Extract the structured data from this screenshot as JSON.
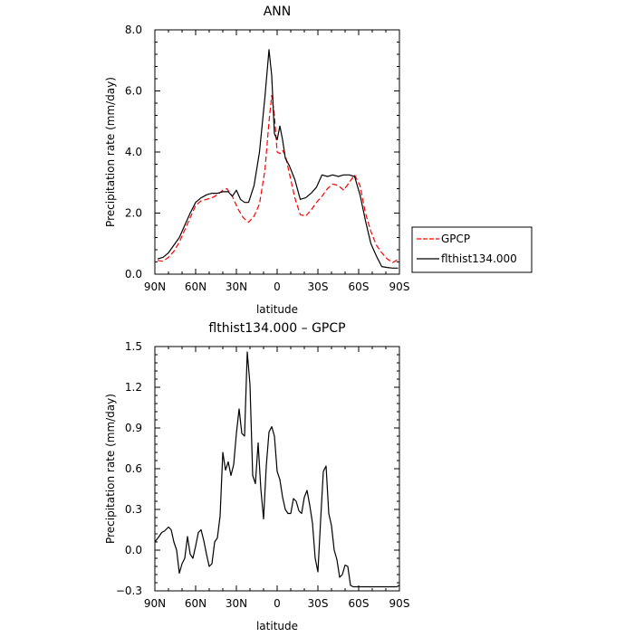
{
  "chart_data": [
    {
      "type": "line",
      "title": "ANN",
      "xlabel": "latitude",
      "ylabel": "Precipitation rate (mm/day)",
      "xlim": [
        -90,
        90
      ],
      "ylim": [
        0,
        8
      ],
      "xticks": [
        -90,
        -60,
        -30,
        0,
        30,
        60,
        90
      ],
      "xticklabels": [
        "90N",
        "60N",
        "30N",
        "0",
        "30S",
        "60S",
        "90S"
      ],
      "yticks": [
        0,
        2,
        4,
        6,
        8
      ],
      "yticklabels": [
        "0.0",
        "2.0",
        "4.0",
        "6.0",
        "8.0"
      ],
      "legend": {
        "placement": "right",
        "entries": [
          "GPCP",
          "flthist134.000"
        ]
      },
      "series": [
        {
          "name": "GPCP",
          "color": "#ff0000",
          "dash": "dashed",
          "x": [
            -88,
            -84,
            -80,
            -76,
            -72,
            -68,
            -64,
            -60,
            -56,
            -52,
            -48,
            -44,
            -40,
            -37,
            -33,
            -29,
            -25,
            -21,
            -17,
            -13,
            -9,
            -6,
            -4,
            -2,
            0,
            2,
            4,
            6,
            9,
            13,
            17,
            21,
            25,
            29,
            33,
            37,
            41,
            45,
            49,
            53,
            57,
            61,
            65,
            69,
            73,
            77,
            81,
            85,
            89
          ],
          "y": [
            0.45,
            0.42,
            0.55,
            0.75,
            1.05,
            1.45,
            1.85,
            2.25,
            2.4,
            2.45,
            2.5,
            2.6,
            2.75,
            2.8,
            2.55,
            2.15,
            1.85,
            1.7,
            1.9,
            2.3,
            3.4,
            5.0,
            5.85,
            5.2,
            4.0,
            3.95,
            4.05,
            3.9,
            3.3,
            2.5,
            1.95,
            1.9,
            2.1,
            2.35,
            2.55,
            2.8,
            2.95,
            2.9,
            2.75,
            3.0,
            3.25,
            2.9,
            2.0,
            1.4,
            0.95,
            0.7,
            0.5,
            0.38,
            0.48
          ]
        },
        {
          "name": "flthist134.000",
          "color": "#000000",
          "dash": "solid",
          "x": [
            -88,
            -84,
            -80,
            -76,
            -72,
            -68,
            -64,
            -60,
            -56,
            -52,
            -48,
            -44,
            -40,
            -36,
            -33,
            -30,
            -27,
            -24,
            -21,
            -17,
            -13,
            -9,
            -6,
            -4,
            -2,
            0,
            2,
            4,
            6,
            9,
            13,
            17,
            21,
            25,
            29,
            33,
            37,
            41,
            45,
            49,
            53,
            57,
            61,
            65,
            69,
            73,
            77,
            81,
            85,
            89
          ],
          "y": [
            0.5,
            0.55,
            0.7,
            0.95,
            1.2,
            1.6,
            2.0,
            2.35,
            2.5,
            2.6,
            2.65,
            2.65,
            2.7,
            2.7,
            2.55,
            2.75,
            2.45,
            2.35,
            2.35,
            2.9,
            4.0,
            5.8,
            7.35,
            6.5,
            4.6,
            4.4,
            4.85,
            4.4,
            3.8,
            3.55,
            3.1,
            2.45,
            2.5,
            2.65,
            2.85,
            3.25,
            3.2,
            3.25,
            3.2,
            3.25,
            3.25,
            3.2,
            2.6,
            1.75,
            1.0,
            0.6,
            0.25,
            0.22,
            0.2,
            0.2
          ]
        }
      ]
    },
    {
      "type": "line",
      "title": "flthist134.000 – GPCP",
      "xlabel": "latitude",
      "ylabel": "Precipitation rate (mm/day)",
      "xlim": [
        -90,
        90
      ],
      "ylim": [
        -0.3,
        1.5
      ],
      "xticks": [
        -90,
        -60,
        -30,
        0,
        30,
        60,
        90
      ],
      "xticklabels": [
        "90N",
        "60N",
        "30N",
        "0",
        "30S",
        "60S",
        "90S"
      ],
      "yticks": [
        -0.3,
        0,
        0.3,
        0.6,
        0.9,
        1.2,
        1.5
      ],
      "yticklabels": [
        "−0.3",
        "0.0",
        "0.3",
        "0.6",
        "0.9",
        "1.2",
        "1.5"
      ],
      "series": [
        {
          "color": "#000000",
          "dash": "solid",
          "x": [
            -90,
            -87,
            -85,
            -83,
            -80,
            -78,
            -76,
            -74,
            -72,
            -70,
            -68,
            -66,
            -64,
            -62,
            -60,
            -58,
            -56,
            -54,
            -52,
            -50,
            -48,
            -46,
            -44,
            -42,
            -40,
            -38,
            -36,
            -34,
            -32,
            -30,
            -28,
            -26,
            -24,
            -22,
            -20,
            -18,
            -16,
            -14,
            -12,
            -10,
            -8,
            -6,
            -4,
            -2,
            0,
            2,
            4,
            6,
            8,
            10,
            12,
            14,
            16,
            18,
            20,
            22,
            24,
            26,
            28,
            30,
            32,
            34,
            36,
            38,
            40,
            42,
            44,
            46,
            48,
            50,
            52,
            54,
            56,
            58,
            60,
            62,
            64,
            66,
            68,
            70,
            72,
            74,
            76,
            78,
            80,
            82,
            84,
            86,
            88,
            90
          ],
          "y": [
            0.06,
            0.1,
            0.13,
            0.14,
            0.17,
            0.15,
            0.06,
            0.0,
            -0.17,
            -0.1,
            -0.06,
            0.1,
            -0.03,
            -0.06,
            0.03,
            0.13,
            0.15,
            0.07,
            -0.03,
            -0.12,
            -0.1,
            0.06,
            0.09,
            0.25,
            0.72,
            0.59,
            0.65,
            0.55,
            0.63,
            0.86,
            1.04,
            0.86,
            0.84,
            1.46,
            1.22,
            0.55,
            0.49,
            0.79,
            0.45,
            0.23,
            0.62,
            0.87,
            0.91,
            0.84,
            0.58,
            0.52,
            0.39,
            0.3,
            0.27,
            0.27,
            0.38,
            0.36,
            0.29,
            0.27,
            0.39,
            0.44,
            0.33,
            0.2,
            -0.06,
            -0.16,
            0.22,
            0.58,
            0.62,
            0.27,
            0.18,
            0.0,
            -0.07,
            -0.2,
            -0.18,
            -0.11,
            -0.12,
            -0.26,
            -0.27,
            -0.27,
            -0.27,
            -0.27,
            -0.27,
            -0.27,
            -0.27,
            -0.27,
            -0.27,
            -0.27,
            -0.27,
            -0.27,
            -0.27,
            -0.27,
            -0.27,
            -0.27,
            -0.27,
            -0.26
          ]
        }
      ]
    }
  ]
}
